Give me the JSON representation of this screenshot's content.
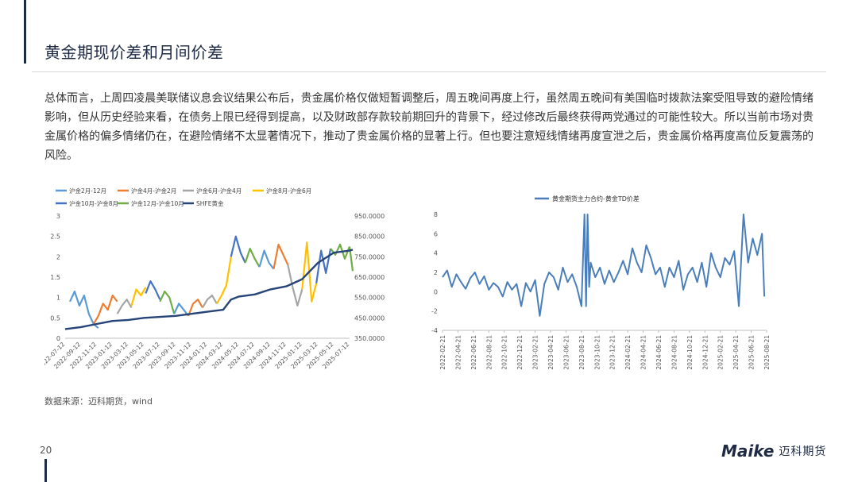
{
  "header": {
    "title": "黄金期现价差和月间价差"
  },
  "body": {
    "paragraph": "总体而言，上周四凌晨美联储议息会议结果公布后，贵金属价格仅做短暂调整后，周五晚间再度上行，虽然周五晚间有美国临时拨款法案受阻导致的避险情绪影响，但从历史经验来看，在债务上限已经得到提高，以及财政部存款较前期回升的背景下，经过修改后最终获得两党通过的可能性较大。所以当前市场对贵金属价格的偏多情绪仍在，在避险情绪不太显著情况下，推动了贵金属价格的显著上行。但也要注意短线情绪再度宣泄之后，贵金属价格再度高位反复震荡的风险。"
  },
  "footer": {
    "source": "数据来源：迈科期货，wind",
    "page": "20",
    "logo_en": "Maike",
    "logo_cn": "迈科期货"
  },
  "colors": {
    "s1": "#5b9bd5",
    "s2": "#ed7d31",
    "s3": "#a5a5a5",
    "s4": "#ffc000",
    "s5": "#4472c4",
    "s6": "#70ad47",
    "s7": "#264478",
    "line2": "#4a7ebb"
  },
  "chart_data": [
    {
      "type": "line",
      "legend": [
        "沪金2月-12月",
        "沪金4月-沪金2月",
        "沪金6月-沪金4月",
        "沪金8月-沪金6月",
        "沪金10月-沪金8月",
        "沪金12月-沪金10月",
        "SHFE黄金"
      ],
      "legend_position": "top",
      "ylim_left": [
        0,
        3
      ],
      "yticks_left": [
        "0",
        "0.5",
        "1",
        "1.5",
        "2",
        "2.5",
        "3"
      ],
      "ylim_right": [
        350,
        950
      ],
      "yticks_right": [
        "350.0000",
        "450.0000",
        "550.0000",
        "650.0000",
        "750.0000",
        "850.0000",
        "950.0000"
      ],
      "xticks": [
        "2022-07-12",
        "2022-09-12",
        "2022-11-12",
        "2023-01-12",
        "2023-03-12",
        "2023-05-12",
        "2023-07-12",
        "2023-09-12",
        "2023-11-12",
        "2024-01-12",
        "2024-03-12",
        "2024-05-12",
        "2024-07-12",
        "2024-09-12",
        "2024-11-12",
        "2025-01-12",
        "2025-03-12",
        "2025-05-12",
        "2025-07-12"
      ],
      "spread_segments": [
        {
          "series": 0,
          "x": [
            0.3,
            0.6,
            0.9,
            1.2,
            1.5,
            1.8,
            2.1
          ],
          "y": [
            0.9,
            1.15,
            0.8,
            1.05,
            0.6,
            0.35,
            0.25
          ]
        },
        {
          "series": 1,
          "x": [
            1.8,
            2.1,
            2.4,
            2.7,
            3.0,
            3.3
          ],
          "y": [
            0.35,
            0.55,
            0.85,
            0.7,
            1.05,
            0.9
          ]
        },
        {
          "series": 2,
          "x": [
            3.3,
            3.6,
            3.9,
            4.2
          ],
          "y": [
            0.6,
            0.8,
            0.95,
            0.75
          ]
        },
        {
          "series": 3,
          "x": [
            4.2,
            4.5,
            4.8,
            5.1
          ],
          "y": [
            0.8,
            1.2,
            1.05,
            1.25
          ]
        },
        {
          "series": 4,
          "x": [
            5.1,
            5.4,
            5.7,
            6.0
          ],
          "y": [
            1.1,
            1.4,
            1.2,
            0.95
          ]
        },
        {
          "series": 5,
          "x": [
            6.0,
            6.3,
            6.6,
            6.9
          ],
          "y": [
            0.9,
            1.15,
            1.0,
            0.6
          ]
        },
        {
          "series": 0,
          "x": [
            6.9,
            7.2,
            7.5,
            7.8
          ],
          "y": [
            0.6,
            0.85,
            0.7,
            0.55
          ]
        },
        {
          "series": 1,
          "x": [
            7.8,
            8.1,
            8.4,
            8.7
          ],
          "y": [
            0.55,
            0.85,
            0.95,
            0.75
          ]
        },
        {
          "series": 2,
          "x": [
            8.7,
            9.0,
            9.3,
            9.6
          ],
          "y": [
            0.75,
            0.95,
            1.05,
            0.85
          ]
        },
        {
          "series": 3,
          "x": [
            9.6,
            9.9,
            10.2,
            10.5
          ],
          "y": [
            0.85,
            1.05,
            1.3,
            2.0
          ]
        },
        {
          "series": 4,
          "x": [
            10.5,
            10.8,
            11.1,
            11.4
          ],
          "y": [
            2.0,
            2.5,
            2.1,
            1.85
          ]
        },
        {
          "series": 5,
          "x": [
            11.4,
            11.7,
            12.0,
            12.3
          ],
          "y": [
            1.85,
            2.2,
            1.95,
            1.75
          ]
        },
        {
          "series": 0,
          "x": [
            12.3,
            12.6,
            12.9,
            13.2
          ],
          "y": [
            1.75,
            2.15,
            1.85,
            1.7
          ]
        },
        {
          "series": 1,
          "x": [
            13.2,
            13.5,
            13.8,
            14.1
          ],
          "y": [
            1.7,
            2.3,
            2.05,
            1.8
          ]
        },
        {
          "series": 2,
          "x": [
            14.1,
            14.4,
            14.7,
            15.0
          ],
          "y": [
            1.8,
            1.25,
            0.8,
            1.2
          ]
        },
        {
          "series": 3,
          "x": [
            15.0,
            15.3,
            15.6,
            15.9
          ],
          "y": [
            1.2,
            2.35,
            0.9,
            1.35
          ]
        },
        {
          "series": 4,
          "x": [
            15.9,
            16.2,
            16.5,
            16.8
          ],
          "y": [
            1.35,
            2.15,
            1.6,
            2.2
          ]
        },
        {
          "series": 5,
          "x": [
            16.8,
            17.1,
            17.4,
            17.7,
            18.0
          ],
          "y": [
            2.2,
            2.05,
            2.3,
            1.95,
            2.25
          ]
        },
        {
          "series": 5,
          "x": [
            18.0,
            18.2
          ],
          "y": [
            2.25,
            1.65
          ]
        }
      ],
      "shfe_gold": {
        "x": [
          0,
          1,
          2,
          3,
          4,
          5,
          6,
          7,
          8,
          9,
          10,
          10.5,
          11,
          12,
          13,
          14,
          15,
          16,
          17,
          18,
          18.2
        ],
        "y": [
          395,
          405,
          420,
          435,
          440,
          450,
          455,
          460,
          470,
          480,
          490,
          540,
          555,
          565,
          590,
          605,
          640,
          720,
          770,
          780,
          785
        ]
      }
    },
    {
      "type": "line",
      "title": "黄金期货主力合约-黄金TD价差",
      "ylim": [
        -4,
        8
      ],
      "yticks": [
        "-4",
        "-2",
        "0",
        "2",
        "4",
        "6",
        "8"
      ],
      "xticks": [
        "2022-02-21",
        "2022-04-21",
        "2022-06-21",
        "2022-08-21",
        "2022-10-21",
        "2022-12-21",
        "2023-02-21",
        "2023-04-21",
        "2023-06-21",
        "2023-08-21",
        "2023-10-21",
        "2023-12-21",
        "2024-02-21",
        "2024-04-21",
        "2024-06-21",
        "2024-08-21",
        "2024-10-21",
        "2024-12-21",
        "2025-02-21",
        "2025-04-21",
        "2025-06-21",
        "2025-08-21"
      ],
      "series": [
        {
          "name": "黄金期货主力合约-黄金TD价差",
          "x": [
            0,
            0.3,
            0.6,
            0.9,
            1.2,
            1.5,
            1.8,
            2.1,
            2.4,
            2.7,
            3.0,
            3.3,
            3.6,
            3.9,
            4.2,
            4.5,
            4.8,
            5.1,
            5.4,
            5.7,
            6.0,
            6.3,
            6.6,
            6.9,
            7.2,
            7.5,
            7.8,
            8.1,
            8.4,
            8.7,
            9.0,
            9.2,
            9.3,
            9.4,
            9.5,
            9.6,
            9.9,
            10.2,
            10.5,
            10.8,
            11.1,
            11.4,
            11.7,
            12.0,
            12.3,
            12.6,
            12.9,
            13.2,
            13.5,
            13.8,
            14.1,
            14.4,
            14.7,
            15.0,
            15.3,
            15.6,
            15.9,
            16.2,
            16.5,
            16.8,
            17.1,
            17.4,
            17.7,
            18.0,
            18.3,
            18.6,
            18.9,
            19.2,
            19.5,
            19.8,
            20.1,
            20.4,
            20.7,
            20.85
          ],
          "y": [
            1.5,
            2.2,
            0.5,
            1.8,
            1.0,
            0.3,
            1.4,
            2.0,
            0.8,
            1.6,
            0.2,
            0.9,
            0.5,
            -0.5,
            1.0,
            0.2,
            0.8,
            -1.5,
            0.9,
            0.0,
            1.2,
            -2.5,
            0.8,
            2.0,
            1.5,
            0.2,
            2.5,
            1.0,
            1.8,
            0.5,
            -1.5,
            8.0,
            -1.5,
            8.0,
            0.5,
            3.0,
            1.5,
            2.5,
            0.8,
            2.2,
            1.0,
            2.0,
            3.2,
            1.8,
            4.5,
            3.0,
            2.0,
            4.8,
            3.5,
            1.8,
            2.5,
            0.5,
            2.5,
            1.5,
            3.2,
            0.2,
            1.8,
            2.5,
            1.0,
            3.0,
            0.5,
            4.0,
            2.5,
            1.5,
            3.5,
            2.8,
            4.2,
            -1.5,
            8.0,
            3.0,
            5.5,
            3.8,
            6.0,
            -0.5
          ]
        }
      ]
    }
  ]
}
